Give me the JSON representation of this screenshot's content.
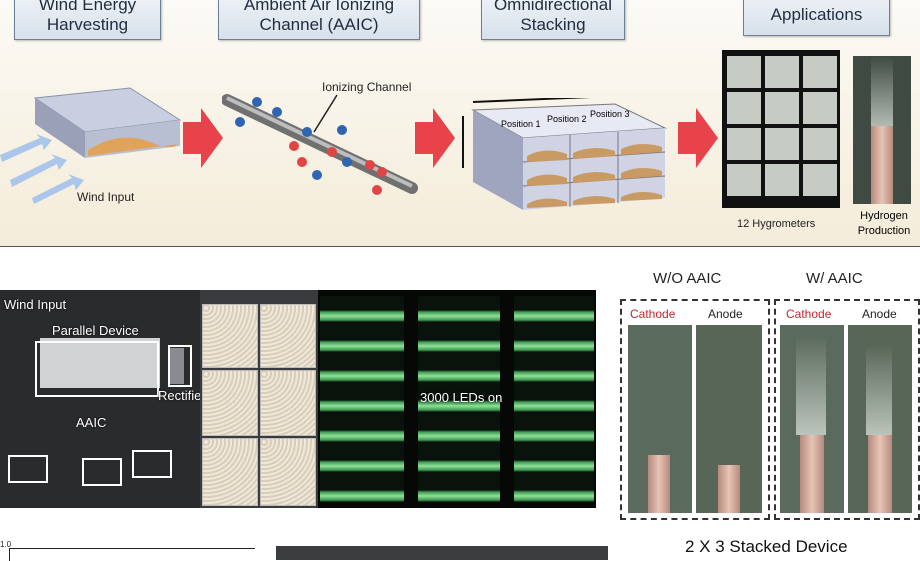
{
  "panels": {
    "wind": {
      "title_line1": "Wind Energy",
      "title_line2": "Harvesting",
      "caption": "Wind Input"
    },
    "aaic": {
      "title_line1": "Ambient Air Ionizing",
      "title_line2": "Channel (AAIC)",
      "caption": "Ionizing Channel"
    },
    "stack": {
      "title_line1": "Omnidirectional",
      "title_line2": "Stacking",
      "positions": [
        "Position 1",
        "Position 2",
        "Position 3"
      ]
    },
    "apps": {
      "title": "Applications",
      "hygro_caption": "12 Hygrometers",
      "hydrogen_line1": "Hydrogen",
      "hydrogen_line2": "Production"
    }
  },
  "photo": {
    "wind_input": "Wind Input",
    "parallel_device": "Parallel Device",
    "rectifier": "Rectifier",
    "aaic": "AAIC",
    "leds": "3000 LEDs on"
  },
  "electrolysis": {
    "without": "W/O AAIC",
    "with": "W/ AAIC",
    "cathode": "Cathode",
    "anode": "Anode"
  },
  "bottom": {
    "axis_top": "1.0",
    "stacked_title": "2 X 3 Stacked Device"
  },
  "colors": {
    "tag_border": "#6b7f96",
    "arrow": "#e8424a",
    "cathode": "#c0282d",
    "led": "#8fe19a"
  }
}
